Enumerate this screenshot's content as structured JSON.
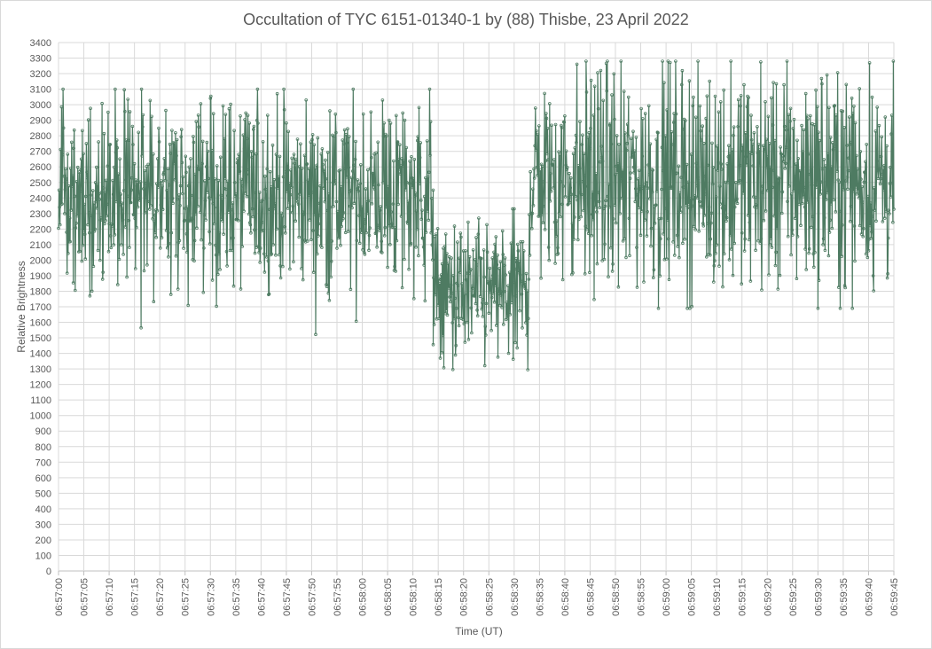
{
  "chart_data": {
    "type": "line",
    "title": "Occultation of TYC 6151-01340-1 by (88) Thisbe, 23 April 2022",
    "xlabel": "Time (UT)",
    "ylabel": "Relative Brightness",
    "ylim": [
      0,
      3400
    ],
    "y_ticks": [
      "0",
      "100",
      "200",
      "300",
      "400",
      "500",
      "600",
      "700",
      "800",
      "900",
      "1000",
      "1100",
      "1200",
      "1300",
      "1400",
      "1500",
      "1600",
      "1700",
      "1800",
      "1900",
      "2000",
      "2100",
      "2200",
      "2300",
      "2400",
      "2500",
      "2600",
      "2700",
      "2800",
      "2900",
      "3000",
      "3100",
      "3200",
      "3300",
      "3400"
    ],
    "x_ticks": [
      "06:57:00",
      "06:57:05",
      "06:57:10",
      "06:57:15",
      "06:57:20",
      "06:57:25",
      "06:57:30",
      "06:57:35",
      "06:57:40",
      "06:57:45",
      "06:57:50",
      "06:57:55",
      "06:58:00",
      "06:58:05",
      "06:58:10",
      "06:58:15",
      "06:58:20",
      "06:58:25",
      "06:58:30",
      "06:58:35",
      "06:58:40",
      "06:58:45",
      "06:58:50",
      "06:58:55",
      "06:59:00",
      "06:59:05",
      "06:59:10",
      "06:59:15",
      "06:59:20",
      "06:59:25",
      "06:59:30",
      "06:59:35",
      "06:59:40",
      "06:59:45"
    ],
    "xlim": [
      "06:57:00",
      "06:59:45"
    ],
    "grid": true,
    "legend": "none",
    "series": [
      {
        "color": "#4e7b62",
        "marker": "circle",
        "sample_interval_s": 0.1,
        "segments": [
          {
            "start": "06:57:00",
            "end": "06:58:14",
            "mean": 2420,
            "min": 1400,
            "max": 3100
          },
          {
            "start": "06:58:14",
            "end": "06:58:33",
            "mean": 1780,
            "min": 1270,
            "max": 2330
          },
          {
            "start": "06:58:33",
            "end": "06:59:45",
            "mean": 2520,
            "min": 1690,
            "max": 3280
          }
        ]
      }
    ]
  }
}
